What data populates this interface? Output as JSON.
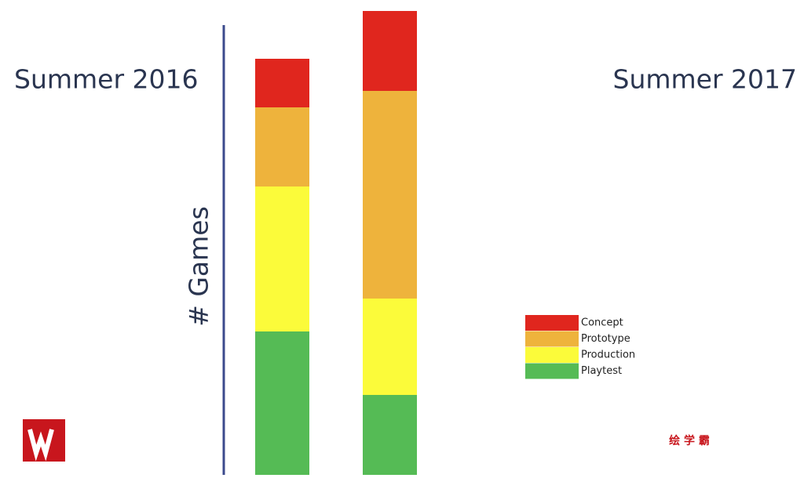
{
  "chart_data": {
    "type": "stacked_bar",
    "categories": [
      "Summer 2016",
      "Summer 2017"
    ],
    "y_label": "# Games",
    "series": [
      {
        "name": "Concept",
        "color": "#e0261e",
        "values": [
          62,
          102
        ]
      },
      {
        "name": "Prototype",
        "color": "#eeb33c",
        "values": [
          101,
          265
        ]
      },
      {
        "name": "Production",
        "color": "#fbfb3a",
        "values": [
          185,
          123
        ]
      },
      {
        "name": "Playtest",
        "color": "#55bb55",
        "values": [
          183,
          102
        ]
      }
    ],
    "ylim": [
      0,
      600
    ],
    "legend": "right"
  },
  "watermark": "绘 学 霸"
}
